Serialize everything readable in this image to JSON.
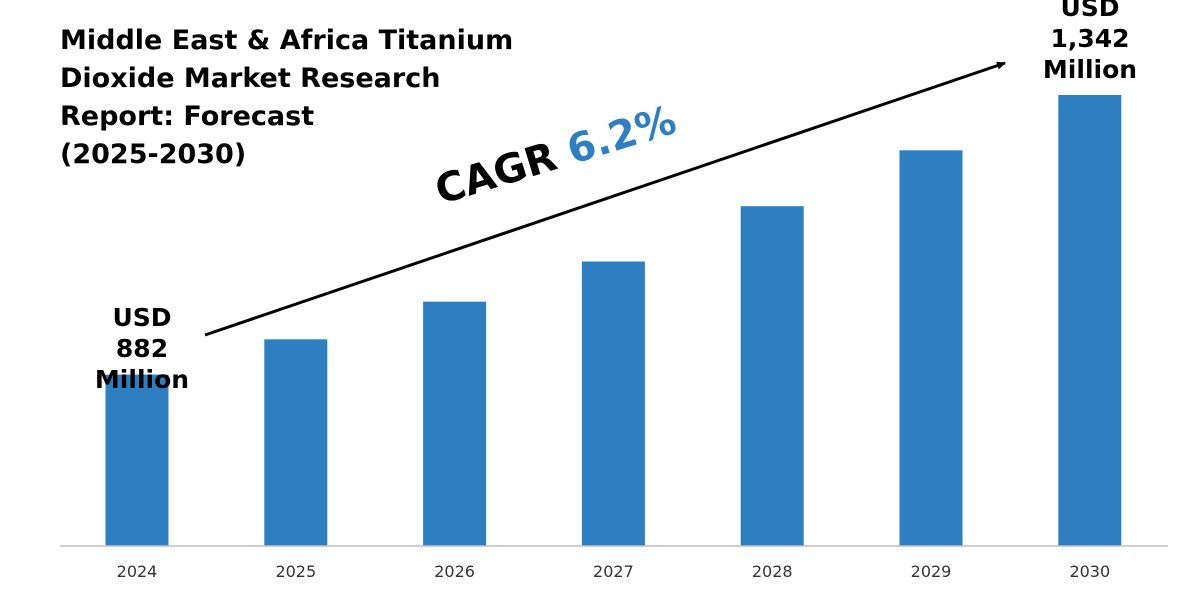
{
  "title_lines": [
    "Middle East & Africa Titanium",
    "Dioxide Market Research",
    "Report: Forecast",
    "(2025-2030)"
  ],
  "cagr": {
    "label": "CAGR",
    "value": "6.2%"
  },
  "start_label": {
    "line1": "USD",
    "line2": "882",
    "line3": "Million"
  },
  "end_label": {
    "line1": "USD",
    "line2": "1,342",
    "line3": "Million"
  },
  "colors": {
    "bar": "#2e7fc2",
    "axis": "#bfbfbf",
    "accent": "#2e7fc2"
  },
  "chart_data": {
    "type": "bar",
    "title": "Middle East & Africa Titanium Dioxide Market Research Report: Forecast (2025-2030)",
    "categories": [
      "2024",
      "2025",
      "2026",
      "2027",
      "2028",
      "2029",
      "2030"
    ],
    "values": [
      882,
      940,
      1002,
      1068,
      1159,
      1251,
      1342
    ],
    "unit": "USD Million",
    "annotations": [
      "USD 882 Million",
      "USD 1,342 Million",
      "CAGR 6.2%"
    ],
    "xlabel": "",
    "ylabel": "",
    "ylim": [
      600,
      1400
    ],
    "grid": false,
    "legend": "none"
  }
}
